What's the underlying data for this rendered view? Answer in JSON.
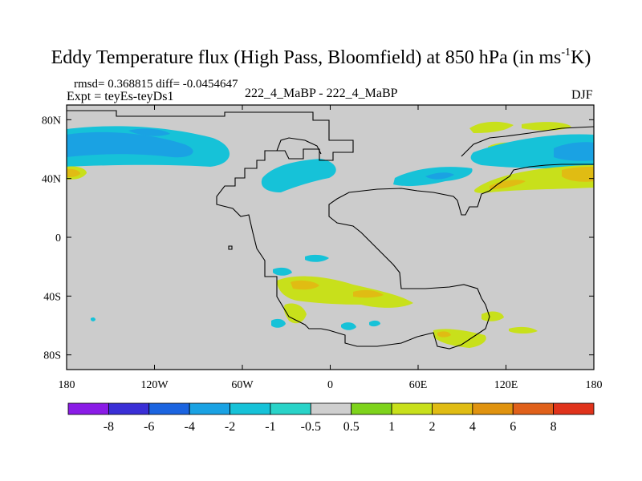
{
  "header": {
    "title_main": "Eddy Temperature flux (High Pass, Bloomfield) at 850 hPa (in ms",
    "title_sup": "-1",
    "title_end": "K)",
    "rmsd_line": "rmsd= 0.368815 diff= -0.0454647",
    "expt_line": "Expt = teyEs-teyDs1",
    "center_label": "222_4_MaBP - 222_4_MaBP",
    "season": "DJF"
  },
  "colors": {
    "background_field": "#cccccc",
    "frame": "#000000",
    "coast": "#000000"
  },
  "chart_data": {
    "type": "heatmap",
    "title": "Eddy Temperature flux (High Pass, Bloomfield) at 850 hPa (in ms-1K)",
    "projection": "cylindrical equidistant",
    "xlim": [
      -180,
      180
    ],
    "ylim": [
      -90,
      90
    ],
    "x_ticks": [
      {
        "value": -180,
        "label": "180"
      },
      {
        "value": -120,
        "label": "120W"
      },
      {
        "value": -60,
        "label": "60W"
      },
      {
        "value": 0,
        "label": "0"
      },
      {
        "value": 60,
        "label": "60E"
      },
      {
        "value": 120,
        "label": "120E"
      },
      {
        "value": 180,
        "label": "180"
      }
    ],
    "y_ticks": [
      {
        "value": 80,
        "label": "80N"
      },
      {
        "value": 40,
        "label": "40N"
      },
      {
        "value": 0,
        "label": "0"
      },
      {
        "value": -40,
        "label": "40S"
      },
      {
        "value": -80,
        "label": "80S"
      }
    ],
    "colorbar": {
      "levels": [
        "-8",
        "-6",
        "-4",
        "-2",
        "-1",
        "-0.5",
        "0.5",
        "1",
        "2",
        "4",
        "6",
        "8"
      ],
      "colors": [
        "#8a1be6",
        "#3a2fd6",
        "#1b64e0",
        "#1aa2e3",
        "#16c2d8",
        "#29d3c8",
        "#cfcfcf",
        "#7ed31b",
        "#c8e01b",
        "#e0bc13",
        "#e0930f",
        "#e0601a",
        "#e0331b"
      ]
    },
    "regions": [
      {
        "name": "north-pacific-negative",
        "level": "-2",
        "lon": [
          -180,
          -117
        ],
        "lat": [
          55,
          80
        ]
      },
      {
        "name": "north-pacific-weak-negative",
        "level": "-1",
        "lon": [
          -180,
          -117
        ],
        "lat": [
          48,
          76
        ]
      },
      {
        "name": "north-atlantic-negative",
        "level": "-1",
        "lon": [
          -48,
          -12
        ],
        "lat": [
          33,
          53
        ]
      },
      {
        "name": "asia-negative",
        "level": "-1",
        "lon": [
          60,
          100
        ],
        "lat": [
          33,
          49
        ]
      },
      {
        "name": "kamchatka-negative",
        "level": "-2",
        "lon": [
          138,
          180
        ],
        "lat": [
          48,
          65
        ]
      },
      {
        "name": "arctic-positive",
        "level": "1",
        "lon": [
          93,
          175
        ],
        "lat": [
          63,
          80
        ]
      },
      {
        "name": "pacific-jet-positive",
        "level": "1",
        "lon": [
          100,
          180
        ],
        "lat": [
          30,
          47
        ]
      },
      {
        "name": "pacific-jet-core",
        "level": "2",
        "lon": [
          160,
          180
        ],
        "lat": [
          39,
          46
        ]
      },
      {
        "name": "west-pacific-edge-positive",
        "level": "2",
        "lon": [
          -180,
          -168
        ],
        "lat": [
          37,
          47
        ]
      },
      {
        "name": "south-atlantic-positive",
        "level": "1",
        "lon": [
          -36,
          60
        ],
        "lat": [
          -50,
          -27
        ]
      },
      {
        "name": "south-atlantic-core",
        "level": "2",
        "lon": [
          -25,
          -8
        ],
        "lat": [
          -36,
          -30
        ]
      },
      {
        "name": "southern-ocean-positive",
        "level": "1",
        "lon": [
          68,
          112
        ],
        "lat": [
          -74,
          -64
        ]
      },
      {
        "name": "southern-ocean-negative",
        "level": "-1",
        "lon": [
          -40,
          3
        ],
        "lat": [
          -65,
          -32
        ]
      }
    ]
  }
}
